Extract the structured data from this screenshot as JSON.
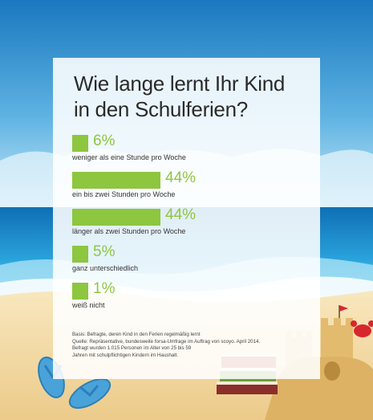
{
  "chart_data": {
    "type": "bar",
    "orientation": "horizontal",
    "title": "Wie lange lernt Ihr Kind in den Schulferien?",
    "title_lines": [
      "Wie lange lernt Ihr Kind",
      "in den Schulferien?"
    ],
    "categories": [
      "weniger als eine Stunde pro Woche",
      "ein bis zwei Stunden pro Woche",
      "länger als zwei Stunden pro Woche",
      "ganz unterschiedlich",
      "weiß nicht"
    ],
    "values": [
      6,
      44,
      44,
      5,
      1
    ],
    "value_labels": [
      "6%",
      "44%",
      "44%",
      "5%",
      "1%"
    ],
    "unit": "%",
    "bar_color": "#8dc63f",
    "grid": false
  },
  "footnote": {
    "lines": [
      "Basis: Befragte, deren Kind in den Ferien regelmäßig lernt",
      "Quelle: Repräsentative, bundesweite forsa-Umfrage im Auftrag von scoyo. April 2014.",
      "Befragt wurden 1.015 Personen im Alter von 25 bis 59",
      "Jahren mit schulpflichtigen Kindern im Haushalt."
    ]
  },
  "colors": {
    "sky_top": "#1c7fc4",
    "sky_bottom": "#bfe4f6",
    "sea": "#1a8fcf",
    "sand": "#f3dba6",
    "accent": "#8dc63f"
  },
  "illustration": {
    "icons": [
      "flip-flop-icon",
      "book-stack-icon",
      "sandcastle-icon",
      "crab-icon",
      "flag-icon",
      "wave-icon"
    ]
  }
}
